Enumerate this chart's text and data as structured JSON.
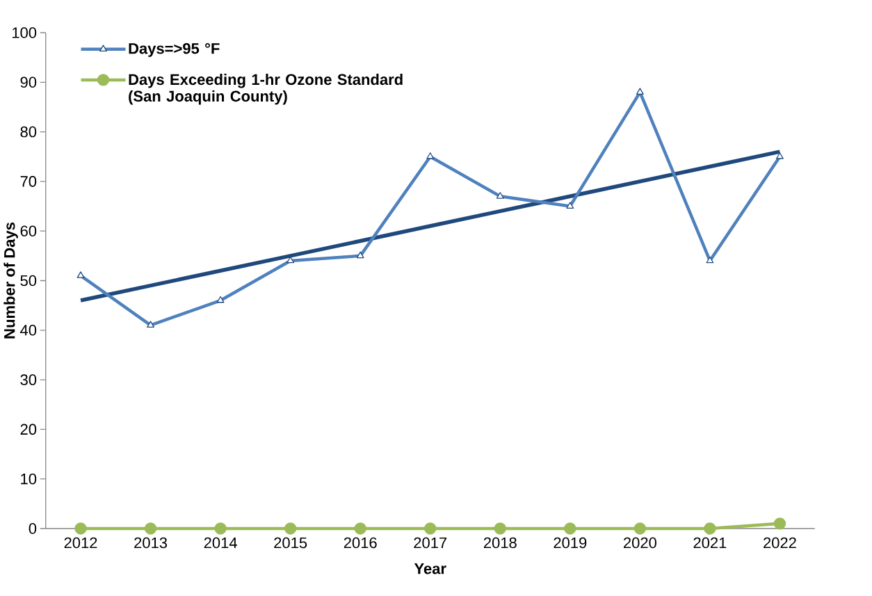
{
  "chart_data": {
    "type": "line",
    "xlabel": "Year",
    "ylabel": "Number of Days",
    "categories": [
      "2012",
      "2013",
      "2014",
      "2015",
      "2016",
      "2017",
      "2018",
      "2019",
      "2020",
      "2021",
      "2022"
    ],
    "series": [
      {
        "name": "Days=>95 °F",
        "color": "#4f81bd",
        "marker": "triangle",
        "values": [
          51,
          41,
          46,
          54,
          55,
          75,
          67,
          65,
          88,
          54,
          75
        ]
      },
      {
        "name": "Days Exceeding 1-hr Ozone Standard (San Joaquin County)",
        "color": "#9bbb59",
        "marker": "circle",
        "values": [
          0,
          0,
          0,
          0,
          0,
          0,
          0,
          0,
          0,
          0,
          1
        ]
      },
      {
        "type": "line",
        "color": "#1f497d",
        "marker": "none",
        "values": [
          46,
          49,
          52,
          55,
          58,
          61,
          64,
          67,
          70,
          73,
          76
        ]
      }
    ],
    "ylim": [
      0,
      100
    ],
    "yticks": [
      0,
      10,
      20,
      30,
      40,
      50,
      60,
      70,
      80,
      90,
      100
    ],
    "grid": false,
    "legend": "top left"
  }
}
